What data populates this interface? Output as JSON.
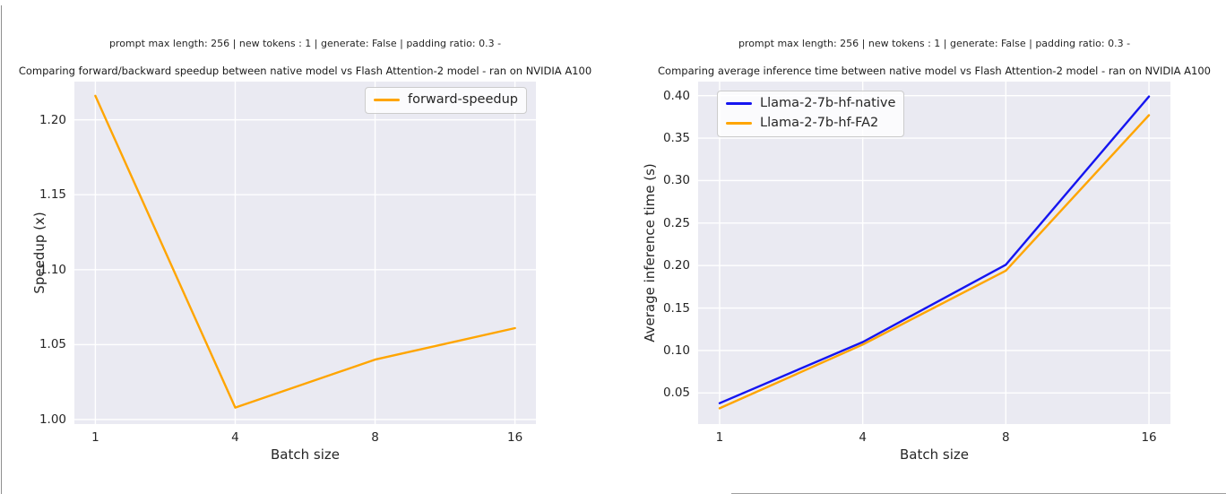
{
  "colors": {
    "plot_background": "#EAEAF2",
    "gridline": "#FFFFFF",
    "text": "#262626",
    "orange_series": "#FFA500",
    "blue_series": "#1515F0",
    "legend_border": "#CCCCCC"
  },
  "chart_data": [
    {
      "type": "line",
      "suptitle": "prompt max length: 256 | new tokens : 1 | generate: False | padding ratio: 0.3 -",
      "title": "Comparing forward/backward speedup between native model vs Flash Attention-2 model - ran on NVIDIA A100",
      "xlabel": "Batch size",
      "ylabel": "Speedup (x)",
      "categories": [
        "1",
        "4",
        "8",
        "16"
      ],
      "x_values": [
        1,
        4,
        8,
        16
      ],
      "y_ticks": [
        1.0,
        1.05,
        1.1,
        1.15,
        1.2
      ],
      "y_tick_labels": [
        "1.00",
        "1.05",
        "1.10",
        "1.15",
        "1.20"
      ],
      "ylim": [
        0.997,
        1.2255
      ],
      "grid": true,
      "legend_position": "upper right",
      "series": [
        {
          "name": "forward-speedup",
          "color": "#FFA500",
          "values": [
            1.216,
            1.008,
            1.04,
            1.061
          ]
        }
      ]
    },
    {
      "type": "line",
      "suptitle": "prompt max length: 256 | new tokens : 1 | generate: False | padding ratio: 0.3 -",
      "title": "Comparing average inference time between native model vs Flash Attention-2 model - ran on NVIDIA A100",
      "xlabel": "Batch size",
      "ylabel": "Average inference time (s)",
      "categories": [
        "1",
        "4",
        "8",
        "16"
      ],
      "x_values": [
        1,
        4,
        8,
        16
      ],
      "y_ticks": [
        0.05,
        0.1,
        0.15,
        0.2,
        0.25,
        0.3,
        0.35,
        0.4
      ],
      "y_tick_labels": [
        "0.05",
        "0.10",
        "0.15",
        "0.20",
        "0.25",
        "0.30",
        "0.35",
        "0.40"
      ],
      "ylim": [
        0.0134,
        0.4166
      ],
      "grid": true,
      "legend_position": "upper left",
      "series": [
        {
          "name": "Llama-2-7b-hf-native",
          "color": "#1515F0",
          "values": [
            0.038,
            0.11,
            0.201,
            0.399
          ]
        },
        {
          "name": "Llama-2-7b-hf-FA2",
          "color": "#FFA500",
          "values": [
            0.032,
            0.107,
            0.194,
            0.377
          ]
        }
      ]
    }
  ]
}
